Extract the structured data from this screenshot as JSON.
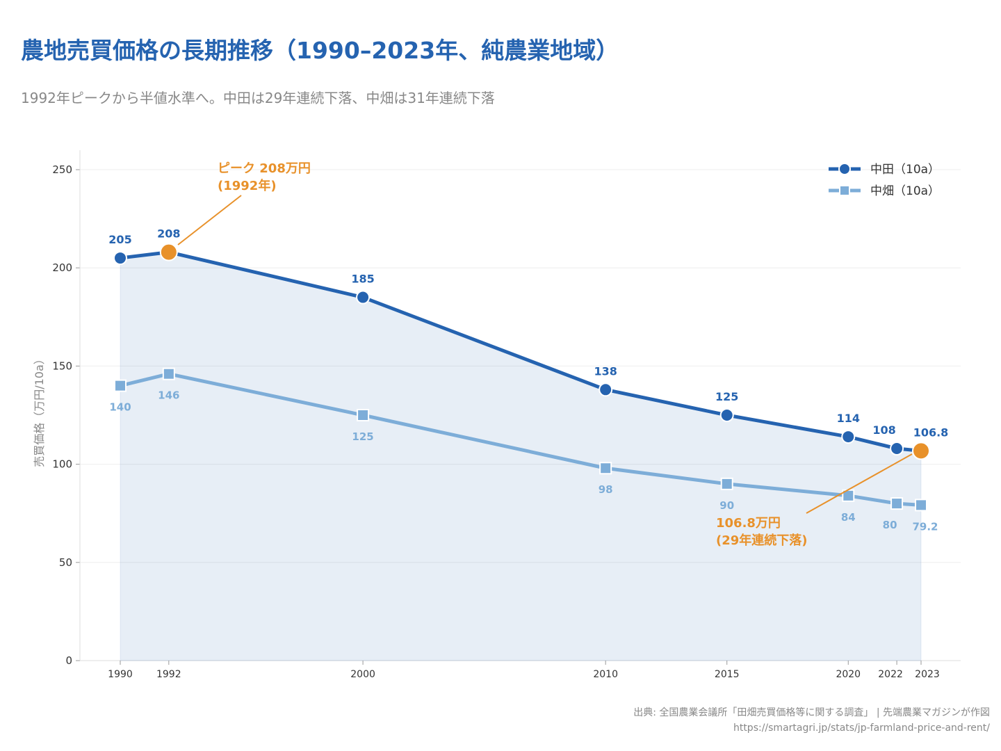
{
  "title": "農地売買価格の長期推移（1990–2023年、純農業地域）",
  "subtitle": "1992年ピークから半値水準へ。中田は29年連続下落、中畑は31年連続下落",
  "source": "出典: 全国農業会議所「田畑売買価格等に関する調査」 | 先端農業マガジンが作図",
  "url": "https://smartagri.jp/stats/jp-farmland-price-and-rent/",
  "chart_data": {
    "type": "line",
    "x": [
      1990,
      1992,
      2000,
      2010,
      2015,
      2020,
      2022,
      2023
    ],
    "x_tick_labels": [
      "1990",
      "1992",
      "2000",
      "2010",
      "2015",
      "2020",
      "2022",
      "2023"
    ],
    "ylabel": "売買価格（万円/10a）",
    "ylim": [
      0,
      260
    ],
    "yticks": [
      0,
      50,
      100,
      150,
      200,
      250
    ],
    "grid": "horizontal",
    "legend_position": "top-right",
    "series": [
      {
        "name": "中田（10a）",
        "marker": "circle",
        "color": "#2563b0",
        "area_fill": true,
        "values": [
          205,
          208,
          185,
          138,
          125,
          114,
          108,
          106.8
        ],
        "labels": [
          "205",
          "208",
          "185",
          "138",
          "125",
          "114",
          "108",
          "106.8"
        ]
      },
      {
        "name": "中畑（10a）",
        "marker": "square",
        "color": "#7dadd8",
        "values": [
          140,
          146,
          125,
          98,
          90,
          84,
          80,
          79.2
        ],
        "labels": [
          "140",
          "146",
          "125",
          "98",
          "90",
          "84",
          "80",
          "79.2"
        ]
      }
    ],
    "annotations": [
      {
        "text_lines": [
          "ピーク 208万円",
          "(1992年)"
        ],
        "x": 1992,
        "y": 208,
        "color": "#e8912a"
      },
      {
        "text_lines": [
          "106.8万円",
          "(29年連続下落)"
        ],
        "x": 2023,
        "y": 106.8,
        "color": "#e8912a"
      }
    ]
  }
}
